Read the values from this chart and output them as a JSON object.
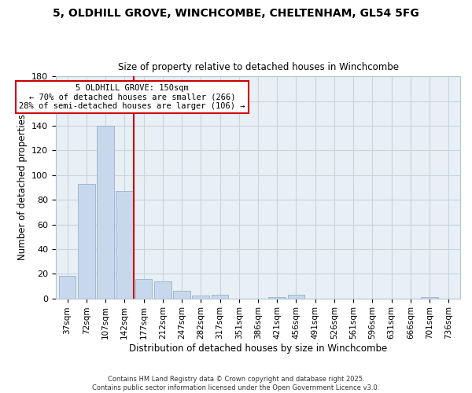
{
  "title1": "5, OLDHILL GROVE, WINCHCOMBE, CHELTENHAM, GL54 5FG",
  "title2": "Size of property relative to detached houses in Winchcombe",
  "xlabel": "Distribution of detached houses by size in Winchcombe",
  "ylabel": "Number of detached properties",
  "categories": [
    "37sqm",
    "72sqm",
    "107sqm",
    "142sqm",
    "177sqm",
    "212sqm",
    "247sqm",
    "282sqm",
    "317sqm",
    "351sqm",
    "386sqm",
    "421sqm",
    "456sqm",
    "491sqm",
    "526sqm",
    "561sqm",
    "596sqm",
    "631sqm",
    "666sqm",
    "701sqm",
    "736sqm"
  ],
  "values": [
    18,
    93,
    140,
    87,
    16,
    14,
    6,
    2,
    3,
    0,
    0,
    1,
    3,
    0,
    0,
    0,
    0,
    0,
    0,
    1,
    0
  ],
  "bar_color": "#c8d8ec",
  "bar_edge_color": "#a0b8d0",
  "vline_x": 3.5,
  "vline_color": "#cc0000",
  "annotation_line1": "5 OLDHILL GROVE: 150sqm",
  "annotation_line2": "← 70% of detached houses are smaller (266)",
  "annotation_line3": "28% of semi-detached houses are larger (106) →",
  "annotation_box_color": "#cc0000",
  "ylim": [
    0,
    180
  ],
  "yticks": [
    0,
    20,
    40,
    60,
    80,
    100,
    120,
    140,
    160,
    180
  ],
  "grid_color": "#c8d4e0",
  "bg_color": "#e8eff5",
  "fig_bg_color": "#ffffff",
  "footer": "Contains HM Land Registry data © Crown copyright and database right 2025.\nContains public sector information licensed under the Open Government Licence v3.0."
}
